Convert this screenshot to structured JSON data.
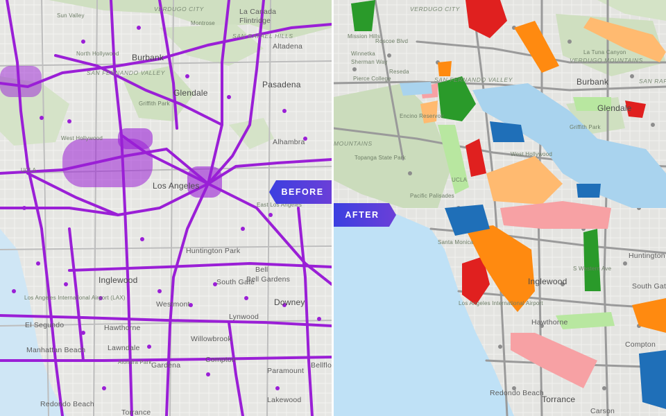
{
  "panels": {
    "before": {
      "tag": "BEFORE",
      "point_color": "#9a1fd6",
      "labels": {
        "verdugo_city": "VERDUGO CITY",
        "la_canada": "La Canada",
        "flintridge": "Flintridge",
        "sun_valley": "Sun Valley",
        "montrose": "Montrose",
        "san_rafael_hills": "SAN RAFAEL HILLS",
        "altadena": "Altadena",
        "burbank": "Burbank",
        "north_hollywood": "North Hollywood",
        "san_fernando_valley": "SAN FERNANDO VALLEY",
        "glendale": "Glendale",
        "griffith_park": "Griffith Park",
        "pasadena": "Pasadena",
        "alhambra": "Alhambra",
        "west_hollywood": "West Hollywood",
        "ucla": "UCLA",
        "los_angeles": "Los Angeles",
        "east_los_angeles": "East Los Angeles",
        "huntington_park": "Huntington Park",
        "bell": "Bell",
        "bell_gardens": "Bell Gardens",
        "south_gate": "South Gate",
        "inglewood": "Inglewood",
        "westmont": "Westmont",
        "downey": "Downey",
        "la_airport": "Los Angeles International Airport (LAX)",
        "el_segundo": "El Segundo",
        "hawthorne": "Hawthorne",
        "lynwood": "Lynwood",
        "willowbrook": "Willowbrook",
        "lawndale": "Lawndale",
        "gardena": "Gardena",
        "compton": "Compton",
        "paramount": "Paramount",
        "manhattan_beach": "Manhattan Beach",
        "redondo_beach": "Redondo Beach",
        "torrance": "Torrance",
        "lakewood": "Lakewood",
        "bellflower": "Bellflower",
        "alondra_park": "Alondra Park"
      }
    },
    "after": {
      "tag": "AFTER",
      "territory_colors": {
        "green": "#2a9a2a",
        "red": "#e0201f",
        "orange": "#ff8a10",
        "peach": "#ffba70",
        "pink": "#f7a1a4",
        "light_blue": "#a9d3ee",
        "light_green": "#b8e7a0",
        "blue": "#1f6fb8",
        "gray": "#7a7a7a"
      },
      "labels": {
        "verdugo_city": "VERDUGO CITY",
        "la_tuna_canyon": "La Tuna Canyon",
        "verdugo_mountains": "VERDUGO MOUNTAINS",
        "mission_hills": "Mission Hills",
        "roscoe_blvd": "Roscoe Blvd",
        "winnetka": "Winnetka",
        "sherman_way": "Sherman Way",
        "reseda": "Reseda",
        "pierce_college": "Pierce College",
        "san_fernando_valley": "SAN FERNANDO VALLEY",
        "burbank": "Burbank",
        "san_rafael": "SAN RAFAEL",
        "glendale": "Glendale",
        "griffith_park": "Griffith Park",
        "encino_reservoir": "Encino Reservoir",
        "mountains": "MOUNTAINS",
        "topanga_state_park": "Topanga State Park",
        "west_hollywood": "West Hollywood",
        "ucla": "UCLA",
        "pacific_palisades": "Pacific Palisades",
        "santa_monica": "Santa Monica",
        "inglewood": "Inglewood",
        "huntington_park": "Huntington Park",
        "south_gate": "South Gate",
        "la_airport": "Los Angeles International Airport",
        "hawthorne": "Hawthorne",
        "compton": "Compton",
        "redondo_beach": "Redondo Beach",
        "torrance": "Torrance",
        "carson": "Carson",
        "western_ave": "S Western Ave"
      }
    }
  }
}
